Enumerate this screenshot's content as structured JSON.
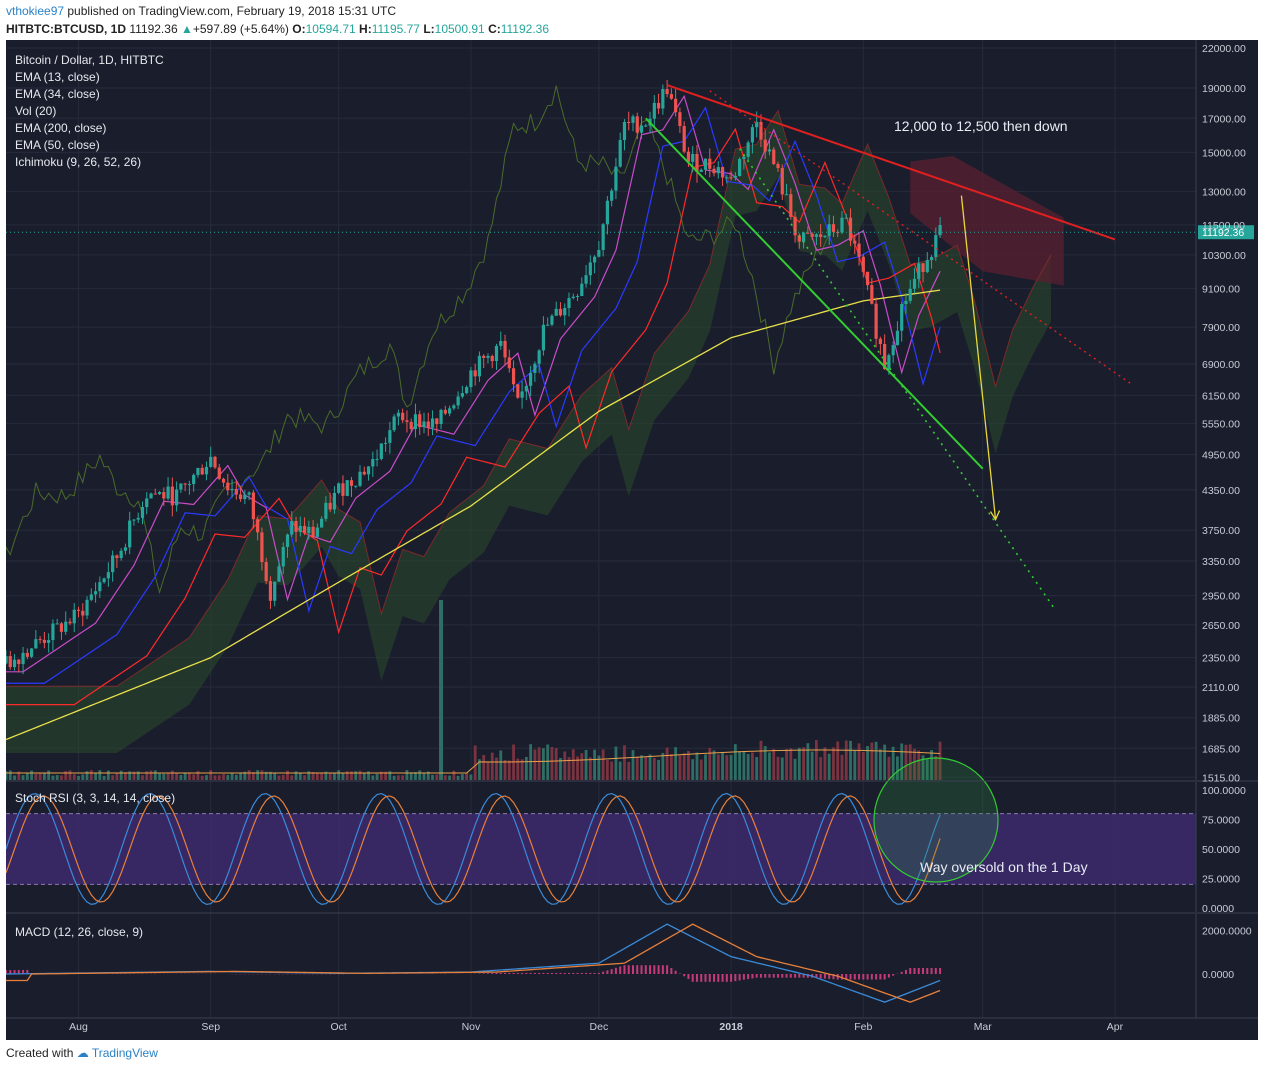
{
  "header": {
    "author": "vthokiee97",
    "published_text": " published on TradingView.com, February 19, 2018 15:31 UTC",
    "symbol": "HITBTC:BTCUSD, 1D",
    "last": "11192.36",
    "change": "+597.89 (+5.64%)",
    "o_label": "O:",
    "o_value": "10594.71",
    "h_label": "H:",
    "h_value": "11195.77",
    "l_label": "L:",
    "l_value": "10500.91",
    "c_label": "C:",
    "c_value": "11192.36"
  },
  "legend": [
    "Bitcoin / Dollar, 1D, HITBTC",
    "EMA (13, close)",
    "EMA (34, close)",
    "Vol (20)",
    "EMA (200, close)",
    "EMA (50, close)",
    "Ichimoku (9, 26, 52, 26)"
  ],
  "annotations": {
    "target": "12,000 to 12,500 then down",
    "oversold": "Way oversold on the 1 Day"
  },
  "last_price_tag": "11192.36",
  "footer": {
    "created_with": "Created with",
    "brand": "TradingView"
  },
  "colors": {
    "background": "#1a1e2c",
    "up": "#26a69a",
    "down": "#ef5350",
    "resistance": "#e0201f",
    "support": "#33cc33",
    "projection": "#e8d83a",
    "ema200": "#e8e04a",
    "ema13": "#c84cc8",
    "ema34": "#2a3aff",
    "ema50": "#ff2a2a",
    "rsi_band": "#3d2a6e"
  },
  "chart_data": [
    {
      "type": "candlestick",
      "title": "Bitcoin / Dollar, 1D, HITBTC",
      "y_scale": "log",
      "ylim": [
        1500,
        22000
      ],
      "y_ticks": [
        "22000.00",
        "19000.00",
        "17000.00",
        "15000.00",
        "13000.00",
        "11500.00",
        "10300.00",
        "9100.00",
        "7900.00",
        "6900.00",
        "6150.00",
        "5550.00",
        "4950.00",
        "4350.00",
        "3750.00",
        "3350.00",
        "2950.00",
        "2650.00",
        "2350.00",
        "2110.00",
        "1885.00",
        "1685.00",
        "1515.00"
      ],
      "x_ticks": [
        "Aug",
        "Sep",
        "Oct",
        "Nov",
        "Dec",
        "2018",
        "Feb",
        "Mar",
        "Apr"
      ],
      "x_range": [
        "2017-07-15",
        "2018-04-20"
      ],
      "price_path": [
        [
          "2017-07-15",
          2300
        ],
        [
          "2017-08-01",
          2750
        ],
        [
          "2017-08-10",
          3400
        ],
        [
          "2017-08-17",
          4300
        ],
        [
          "2017-08-24",
          4250
        ],
        [
          "2017-09-01",
          4900
        ],
        [
          "2017-09-05",
          4400
        ],
        [
          "2017-09-10",
          4200
        ],
        [
          "2017-09-15",
          3000
        ],
        [
          "2017-09-20",
          3800
        ],
        [
          "2017-09-25",
          3700
        ],
        [
          "2017-10-01",
          4350
        ],
        [
          "2017-10-09",
          4800
        ],
        [
          "2017-10-15",
          5700
        ],
        [
          "2017-10-24",
          5500
        ],
        [
          "2017-11-01",
          6700
        ],
        [
          "2017-11-08",
          7400
        ],
        [
          "2017-11-12",
          5900
        ],
        [
          "2017-11-18",
          7800
        ],
        [
          "2017-11-26",
          9100
        ],
        [
          "2017-12-01",
          10800
        ],
        [
          "2017-12-07",
          16500
        ],
        [
          "2017-12-12",
          16800
        ],
        [
          "2017-12-17",
          19000
        ],
        [
          "2017-12-22",
          14500
        ],
        [
          "2017-12-28",
          14300
        ],
        [
          "2018-01-01",
          13500
        ],
        [
          "2018-01-07",
          16800
        ],
        [
          "2018-01-12",
          13800
        ],
        [
          "2018-01-17",
          10800
        ],
        [
          "2018-01-22",
          11000
        ],
        [
          "2018-01-28",
          11600
        ],
        [
          "2018-02-01",
          9500
        ],
        [
          "2018-02-06",
          6900
        ],
        [
          "2018-02-10",
          8500
        ],
        [
          "2018-02-15",
          10000
        ],
        [
          "2018-02-19",
          11192
        ]
      ],
      "ema200": [
        [
          "2017-07-15",
          1740
        ],
        [
          "2017-09-01",
          2350
        ],
        [
          "2017-10-01",
          3100
        ],
        [
          "2017-11-01",
          4100
        ],
        [
          "2017-12-01",
          5800
        ],
        [
          "2018-01-01",
          7600
        ],
        [
          "2018-02-01",
          8700
        ],
        [
          "2018-02-19",
          9050
        ]
      ],
      "resistance_line": [
        [
          "2017-12-17",
          19200
        ],
        [
          "2018-04-01",
          10900
        ]
      ],
      "support_line": [
        [
          "2017-12-12",
          17000
        ],
        [
          "2018-03-01",
          4700
        ]
      ],
      "projection_arrow": [
        [
          "2018-02-24",
          12800
        ],
        [
          "2018-03-04",
          3900
        ]
      ]
    },
    {
      "type": "bar",
      "title": "Vol (20)",
      "note": "volume histogram, spike in late October"
    },
    {
      "type": "line",
      "title": "Stoch RSI (3, 3, 14, 14, close)",
      "ylim": [
        0,
        100
      ],
      "y_ticks": [
        "100.0000",
        "75.0000",
        "50.0000",
        "25.0000",
        "0.0000"
      ],
      "band": [
        20,
        80
      ]
    },
    {
      "type": "line",
      "title": "MACD (12, 26, close, 9)",
      "y_ticks": [
        "2000.0000",
        "0.0000"
      ],
      "macd_path": [
        [
          "2017-07-15",
          0
        ],
        [
          "2017-09-01",
          120
        ],
        [
          "2017-10-01",
          30
        ],
        [
          "2017-11-01",
          90
        ],
        [
          "2017-12-01",
          500
        ],
        [
          "2017-12-17",
          2300
        ],
        [
          "2018-01-01",
          800
        ],
        [
          "2018-01-20",
          -100
        ],
        [
          "2018-02-06",
          -1300
        ],
        [
          "2018-02-19",
          -300
        ]
      ]
    }
  ]
}
